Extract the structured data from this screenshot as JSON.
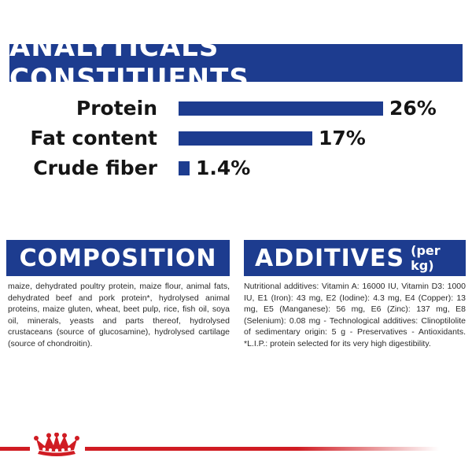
{
  "analytics": {
    "title": "ANALYTICALS CONSTITUENTS",
    "rows": [
      {
        "label": "Protein",
        "value_text": "26%",
        "value": 26
      },
      {
        "label": "Fat content",
        "value_text": "17%",
        "value": 17
      },
      {
        "label": "Crude fiber",
        "value_text": "1.4%",
        "value": 1.4
      }
    ]
  },
  "composition": {
    "title": "COMPOSITION",
    "text": "maize, dehydrated poultry protein, maize flour, animal fats, dehydrated beef and pork protein*, hydrolysed animal proteins, maize gluten, wheat, beet pulp, rice, fish oil, soya oil, minerals, yeasts and parts thereof, hydrolysed crustaceans (source of glucosamine), hydrolysed cartilage (source of chondroitin)."
  },
  "additives": {
    "title": "ADDITIVES",
    "subtitle": "(per kg)",
    "text": "Nutritional additives: Vitamin A: 16000 IU, Vitamin D3: 1000 IU, E1 (Iron): 43 mg, E2 (Iodine): 4.3 mg, E4 (Copper): 13 mg, E5 (Manganese): 56 mg, E6 (Zinc): 137 mg, E8 (Selenium): 0.08 mg - Technological additives: Clinoptilolite of sedimentary origin: 5 g - Preservatives - Antioxidants. *L.I.P.: protein selected for its very high digestibility."
  },
  "colors": {
    "brand_blue": "#1d3c8f",
    "brand_red": "#d01c23"
  },
  "footer": {
    "logo_icon": "royal-canin-crown-icon"
  }
}
